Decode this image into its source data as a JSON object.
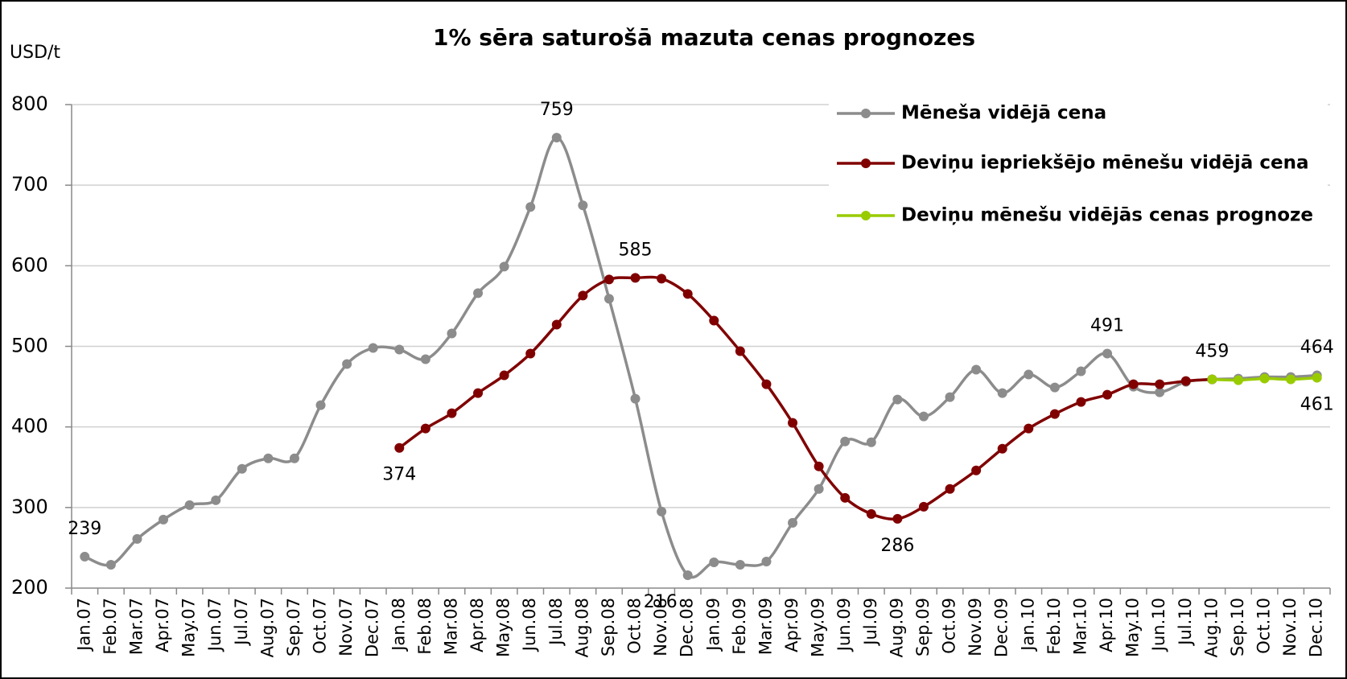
{
  "chart_data": {
    "type": "line",
    "title": "1% sēra saturošā mazuta cenas prognozes",
    "y_label": "USD/t",
    "categories": [
      "Jan.07",
      "Feb.07",
      "Mar.07",
      "Apr.07",
      "May.07",
      "Jun.07",
      "Jul.07",
      "Aug.07",
      "Sep.07",
      "Oct.07",
      "Nov.07",
      "Dec.07",
      "Jan.08",
      "Feb.08",
      "Mar.08",
      "Apr.08",
      "May.08",
      "Jun.08",
      "Jul.08",
      "Aug.08",
      "Sep.08",
      "Oct.08",
      "Nov.08",
      "Dec.08",
      "Jan.09",
      "Feb.09",
      "Mar.09",
      "Apr.09",
      "May.09",
      "Jun.09",
      "Jul.09",
      "Aug.09",
      "Sep.09",
      "Oct.09",
      "Nov.09",
      "Dec.09",
      "Jan.10",
      "Feb.10",
      "Mar.10",
      "Apr.10",
      "May.10",
      "Jun.10",
      "Jul.10",
      "Aug.10",
      "Sep.10",
      "Oct.10",
      "Nov.10",
      "Dec.10"
    ],
    "series": [
      {
        "name": "Mēneša vidējā cena",
        "color": "#8c8c8c",
        "values": [
          239,
          229,
          261,
          285,
          303,
          309,
          348,
          361,
          361,
          427,
          478,
          498,
          496,
          484,
          516,
          566,
          599,
          673,
          759,
          675,
          559,
          435,
          295,
          216,
          232,
          229,
          233,
          281,
          323,
          382,
          381,
          434,
          413,
          437,
          471,
          442,
          465,
          449,
          469,
          491,
          450,
          443,
          456,
          459,
          460,
          462,
          462,
          464
        ],
        "value_labels": [
          "239",
          null,
          null,
          null,
          null,
          null,
          null,
          null,
          null,
          null,
          null,
          null,
          null,
          null,
          null,
          null,
          null,
          null,
          "759",
          null,
          null,
          null,
          null,
          "216",
          null,
          null,
          null,
          null,
          null,
          null,
          null,
          null,
          null,
          null,
          null,
          null,
          null,
          null,
          null,
          "491",
          null,
          null,
          null,
          null,
          null,
          null,
          null,
          "464"
        ]
      },
      {
        "name": "Deviņu iepriekšējo mēnešu vidējā cena",
        "color": "#800000",
        "values": [
          null,
          null,
          null,
          null,
          null,
          null,
          null,
          null,
          null,
          null,
          null,
          null,
          374,
          398,
          417,
          442,
          464,
          491,
          527,
          563,
          583,
          585,
          584,
          565,
          532,
          494,
          453,
          405,
          351,
          312,
          292,
          286,
          301,
          323,
          346,
          373,
          398,
          416,
          431,
          440,
          453,
          453,
          457,
          459,
          null,
          null,
          null,
          null
        ],
        "value_labels": [
          null,
          null,
          null,
          null,
          null,
          null,
          null,
          null,
          null,
          null,
          null,
          null,
          "374",
          null,
          null,
          null,
          null,
          null,
          null,
          null,
          null,
          "585",
          null,
          null,
          null,
          null,
          null,
          null,
          null,
          null,
          null,
          "286",
          null,
          null,
          null,
          null,
          null,
          null,
          null,
          null,
          null,
          null,
          null,
          "459",
          null,
          null,
          null,
          null
        ]
      },
      {
        "name": "Deviņu mēnešu vidējās cenas prognoze",
        "color": "#99cc00",
        "values": [
          null,
          null,
          null,
          null,
          null,
          null,
          null,
          null,
          null,
          null,
          null,
          null,
          null,
          null,
          null,
          null,
          null,
          null,
          null,
          null,
          null,
          null,
          null,
          null,
          null,
          null,
          null,
          null,
          null,
          null,
          null,
          null,
          null,
          null,
          null,
          null,
          null,
          null,
          null,
          null,
          null,
          null,
          null,
          459,
          458,
          460,
          459,
          461
        ],
        "value_labels": [
          null,
          null,
          null,
          null,
          null,
          null,
          null,
          null,
          null,
          null,
          null,
          null,
          null,
          null,
          null,
          null,
          null,
          null,
          null,
          null,
          null,
          null,
          null,
          null,
          null,
          null,
          null,
          null,
          null,
          null,
          null,
          null,
          null,
          null,
          null,
          null,
          null,
          null,
          null,
          null,
          null,
          null,
          null,
          null,
          null,
          null,
          null,
          "461"
        ]
      }
    ],
    "ylim": [
      200,
      800
    ],
    "yticks": [
      200,
      300,
      400,
      500,
      600,
      700,
      800
    ],
    "grid": true,
    "legend": "top-right"
  }
}
